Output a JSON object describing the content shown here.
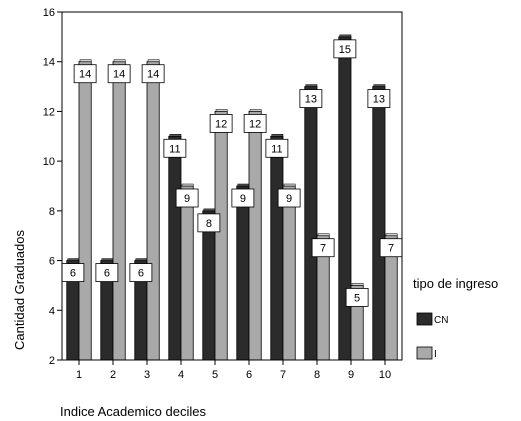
{
  "chart_data": {
    "type": "bar",
    "title": "",
    "xlabel": "Indice Academico deciles",
    "ylabel": "Cantidad Graduados",
    "ylim": [
      2,
      16
    ],
    "yticks": [
      2,
      4,
      6,
      8,
      10,
      12,
      14,
      16
    ],
    "categories": [
      "1",
      "2",
      "3",
      "4",
      "5",
      "6",
      "7",
      "8",
      "9",
      "10"
    ],
    "series": [
      {
        "name": "CN",
        "values": [
          6,
          6,
          6,
          11,
          8,
          9,
          11,
          13,
          15,
          13
        ],
        "color": "#2b2b2b"
      },
      {
        "name": "I",
        "values": [
          14,
          14,
          14,
          9,
          12,
          12,
          9,
          7,
          5,
          7
        ],
        "color": "#a9a9a9"
      }
    ],
    "legend": {
      "title": "tipo de ingreso",
      "position": "right"
    },
    "grid": false
  }
}
